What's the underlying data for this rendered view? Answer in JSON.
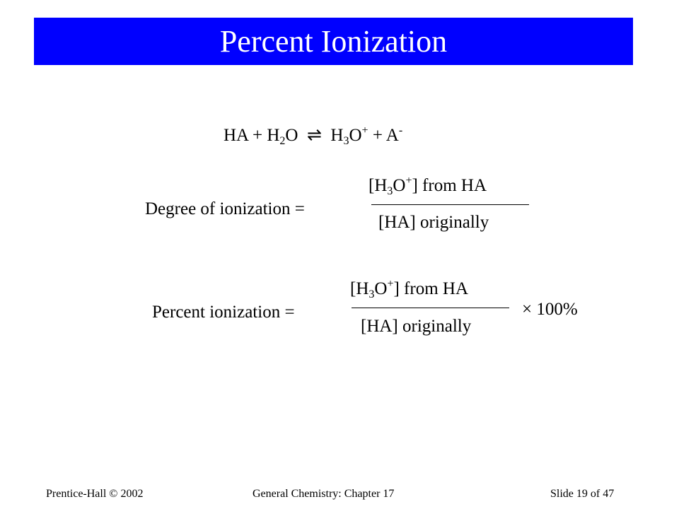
{
  "title": "Percent Ionization",
  "equation": [
    "HA + H",
    "2",
    "O",
    "⇌",
    "H",
    "3",
    "O",
    "+",
    "+ A",
    "-"
  ],
  "degree": {
    "label": "Degree of ionization =",
    "numerator": [
      "[H",
      "3",
      "O",
      "+",
      "] from HA"
    ],
    "denominator": "[HA] originally"
  },
  "percent": {
    "label": "Percent ionization =",
    "numerator": [
      "[H",
      "3",
      "O",
      "+",
      "] from HA"
    ],
    "denominator": "[HA] originally",
    "multiplier": "× 100%"
  },
  "footer": {
    "left": "Prentice-Hall © 2002",
    "center": "General Chemistry: Chapter 17",
    "right": "Slide 19 of 47"
  }
}
